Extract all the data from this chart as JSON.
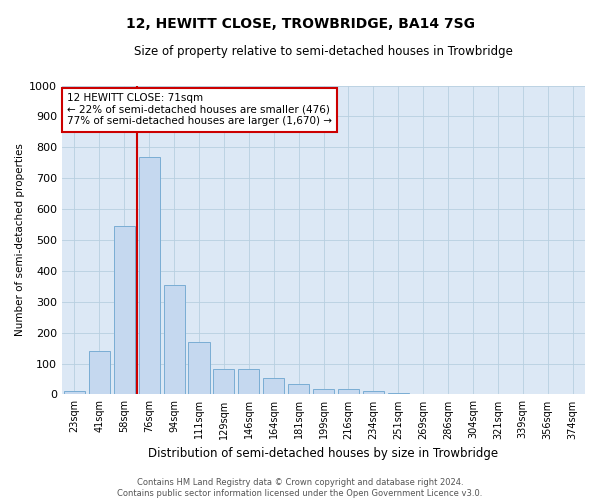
{
  "title": "12, HEWITT CLOSE, TROWBRIDGE, BA14 7SG",
  "subtitle": "Size of property relative to semi-detached houses in Trowbridge",
  "xlabel": "Distribution of semi-detached houses by size in Trowbridge",
  "ylabel": "Number of semi-detached properties",
  "categories": [
    "23sqm",
    "41sqm",
    "58sqm",
    "76sqm",
    "94sqm",
    "111sqm",
    "129sqm",
    "146sqm",
    "164sqm",
    "181sqm",
    "199sqm",
    "216sqm",
    "234sqm",
    "251sqm",
    "269sqm",
    "286sqm",
    "304sqm",
    "321sqm",
    "339sqm",
    "356sqm",
    "374sqm"
  ],
  "values": [
    10,
    140,
    545,
    770,
    355,
    170,
    83,
    83,
    52,
    35,
    18,
    18,
    10,
    5,
    0,
    0,
    0,
    0,
    0,
    0,
    0
  ],
  "bar_color": "#c5d8ef",
  "bar_edge_color": "#7aadd4",
  "annotation_text_line1": "12 HEWITT CLOSE: 71sqm",
  "annotation_text_line2": "← 22% of semi-detached houses are smaller (476)",
  "annotation_text_line3": "77% of semi-detached houses are larger (1,670) →",
  "annotation_box_color": "#ffffff",
  "annotation_box_edge": "#cc0000",
  "vline_color": "#cc0000",
  "vline_x_index": 2.5,
  "ylim": [
    0,
    1000
  ],
  "yticks": [
    0,
    100,
    200,
    300,
    400,
    500,
    600,
    700,
    800,
    900,
    1000
  ],
  "background_color": "#ffffff",
  "ax_background_color": "#dce8f5",
  "grid_color": "#b8cfe0",
  "footer_line1": "Contains HM Land Registry data © Crown copyright and database right 2024.",
  "footer_line2": "Contains public sector information licensed under the Open Government Licence v3.0."
}
